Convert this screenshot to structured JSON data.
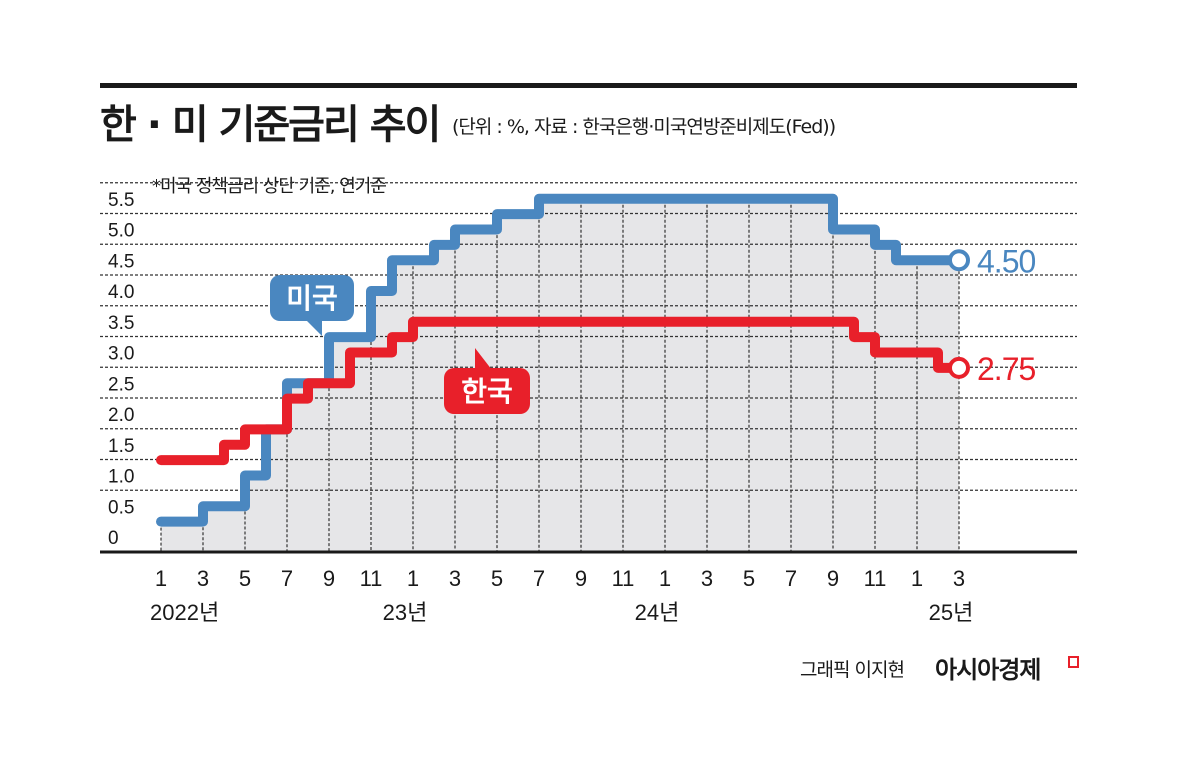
{
  "title": "한 · 미 기준금리 추이",
  "subtitle": "(단위 : %, 자료 : 한국은행·미국연방준비제도(Fed))",
  "note": "*미국 정책금리 상단 기준, 연기준",
  "credit": "그래픽 이지현",
  "brand": "아시아경제",
  "colors": {
    "us": "#4a87c0",
    "kr": "#e8202a",
    "fill": "#e6e6e8",
    "grid": "#333333"
  },
  "labels": {
    "us_bubble": "미국",
    "kr_bubble": "한국",
    "us_end": "4.50",
    "kr_end": "2.75"
  },
  "chart_data": {
    "type": "line",
    "step": true,
    "title": "한 · 미 기준금리 추이",
    "subtitle": "(단위 : %, 자료 : 한국은행·미국연방준비제도(Fed))",
    "note": "*미국 정책금리 상단 기준, 연기준",
    "xlabel": "",
    "ylabel": "%",
    "ylim": [
      0,
      5.5
    ],
    "yticks": [
      "0",
      "0.5",
      "1.0",
      "1.5",
      "2.0",
      "2.5",
      "3.0",
      "3.5",
      "4.0",
      "4.5",
      "5.0",
      "5.5"
    ],
    "xticks": [
      "1",
      "3",
      "5",
      "7",
      "9",
      "11",
      "1",
      "3",
      "5",
      "7",
      "9",
      "11",
      "1",
      "3",
      "5",
      "7",
      "9",
      "11",
      "1",
      "3"
    ],
    "year_labels": [
      {
        "label": "2022년",
        "at_index": 0
      },
      {
        "label": "23년",
        "at_index": 6
      },
      {
        "label": "24년",
        "at_index": 12
      },
      {
        "label": "25년",
        "at_index": 19
      }
    ],
    "grid": true,
    "legend_position": "inline callouts",
    "x": [
      "2022-01",
      "2022-02",
      "2022-03",
      "2022-04",
      "2022-05",
      "2022-06",
      "2022-07",
      "2022-08",
      "2022-09",
      "2022-10",
      "2022-11",
      "2022-12",
      "2023-01",
      "2023-02",
      "2023-03",
      "2023-04",
      "2023-05",
      "2023-06",
      "2023-07",
      "2023-08",
      "2023-09",
      "2023-10",
      "2023-11",
      "2023-12",
      "2024-01",
      "2024-02",
      "2024-03",
      "2024-04",
      "2024-05",
      "2024-06",
      "2024-07",
      "2024-08",
      "2024-09",
      "2024-10",
      "2024-11",
      "2024-12",
      "2025-01",
      "2025-02",
      "2025-03"
    ],
    "series": [
      {
        "name": "미국",
        "color": "#4a87c0",
        "values": [
          0.25,
          0.25,
          0.5,
          0.5,
          1.0,
          1.75,
          2.5,
          2.5,
          3.25,
          3.25,
          4.0,
          4.5,
          4.5,
          4.75,
          5.0,
          5.0,
          5.25,
          5.25,
          5.5,
          5.5,
          5.5,
          5.5,
          5.5,
          5.5,
          5.5,
          5.5,
          5.5,
          5.5,
          5.5,
          5.5,
          5.5,
          5.5,
          5.0,
          5.0,
          4.75,
          4.5,
          4.5,
          4.5,
          4.5
        ],
        "end_label": "4.50"
      },
      {
        "name": "한국",
        "color": "#e8202a",
        "values": [
          1.25,
          1.25,
          1.25,
          1.5,
          1.75,
          1.75,
          2.25,
          2.5,
          2.5,
          3.0,
          3.0,
          3.25,
          3.5,
          3.5,
          3.5,
          3.5,
          3.5,
          3.5,
          3.5,
          3.5,
          3.5,
          3.5,
          3.5,
          3.5,
          3.5,
          3.5,
          3.5,
          3.5,
          3.5,
          3.5,
          3.5,
          3.5,
          3.5,
          3.25,
          3.0,
          3.0,
          3.0,
          2.75,
          2.75
        ],
        "end_label": "2.75"
      }
    ]
  }
}
